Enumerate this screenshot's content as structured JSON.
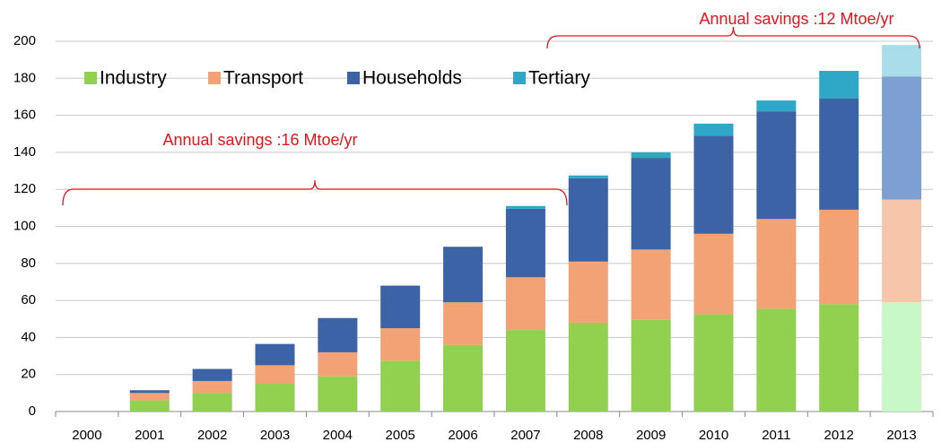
{
  "chart_data": {
    "type": "stacked_bar",
    "categories": [
      "2000",
      "2001",
      "2002",
      "2003",
      "2004",
      "2005",
      "2006",
      "2007",
      "2008",
      "2009",
      "2010",
      "2011",
      "2012",
      "2013"
    ],
    "series": [
      {
        "name": "Industry",
        "color": "#92d050",
        "faded_color": "#c8f7c8",
        "values": [
          0,
          6,
          10,
          15,
          19,
          27.5,
          36,
          44,
          48,
          49.5,
          52.5,
          55.5,
          58,
          59
        ]
      },
      {
        "name": "Transport",
        "color": "#f2a275",
        "faded_color": "#f7c6aa",
        "values": [
          0,
          4,
          6.5,
          10,
          13,
          17.5,
          23,
          28.5,
          33,
          38,
          43.5,
          48.5,
          51,
          55.5
        ]
      },
      {
        "name": "Households",
        "color": "#3b63a6",
        "faded_color": "#7d9fd1",
        "values": [
          0,
          1.5,
          6.5,
          11.5,
          18.5,
          23,
          30,
          37,
          45,
          49.5,
          53,
          58,
          60,
          66.5
        ]
      },
      {
        "name": "Tertiary",
        "color": "#2fa7c7",
        "faded_color": "#a8dde9",
        "values": [
          0,
          0,
          0,
          0,
          0,
          0,
          0,
          1.5,
          1.5,
          3,
          6.5,
          6,
          15,
          17
        ]
      }
    ],
    "faded_categories": [
      "2013"
    ],
    "ylim": [
      0,
      200
    ],
    "yticks": [
      0,
      20,
      40,
      60,
      80,
      100,
      120,
      140,
      160,
      180,
      200
    ],
    "grid": true,
    "legend": "top-left",
    "annotations": [
      {
        "text": "Annual savings :16 Mtoe/yr"
      },
      {
        "text": "Annual savings :12 Mtoe/yr"
      }
    ]
  }
}
